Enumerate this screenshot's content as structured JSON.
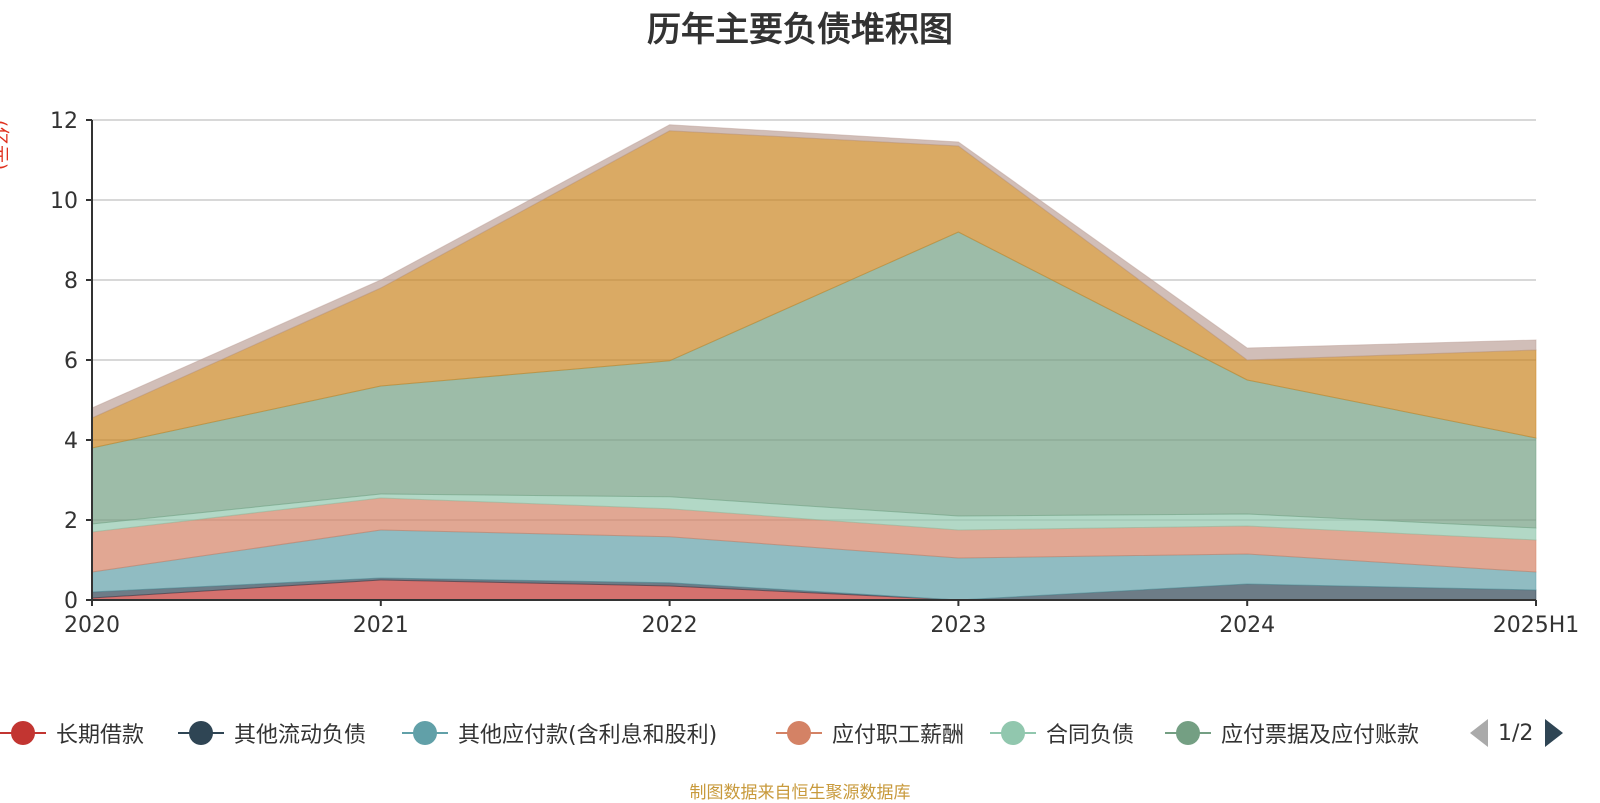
{
  "chart_data": {
    "type": "area",
    "title": "历年主要负债堆积图",
    "unit_label": "(亿元)",
    "categories": [
      "2020",
      "2021",
      "2022",
      "2023",
      "2024",
      "2025H1"
    ],
    "ylim": [
      0,
      12
    ],
    "yticks": [
      0,
      2,
      4,
      6,
      8,
      10,
      12
    ],
    "stacked": true,
    "grid": true,
    "series": [
      {
        "name": "长期借款",
        "color": "#c23531",
        "values": [
          0.05,
          0.5,
          0.35,
          0.0,
          0.0,
          0.0
        ]
      },
      {
        "name": "其他流动负债",
        "color": "#2f4554",
        "values": [
          0.15,
          0.05,
          0.08,
          0.0,
          0.4,
          0.25
        ]
      },
      {
        "name": "其他应付款(含利息和股利)",
        "color": "#61a0a8",
        "values": [
          0.5,
          1.2,
          1.15,
          1.05,
          0.75,
          0.45
        ]
      },
      {
        "name": "应付职工薪酬",
        "color": "#d48265",
        "values": [
          1.0,
          0.8,
          0.7,
          0.7,
          0.7,
          0.8
        ]
      },
      {
        "name": "合同负债",
        "color": "#91c7ae",
        "values": [
          0.2,
          0.1,
          0.3,
          0.35,
          0.3,
          0.3
        ]
      },
      {
        "name": "应付票据及应付账款",
        "color": "#749f83",
        "values": [
          1.9,
          2.7,
          3.4,
          7.1,
          3.35,
          2.25
        ]
      },
      {
        "name": "",
        "color": "#ca8622",
        "values": [
          0.75,
          2.45,
          5.75,
          2.15,
          0.5,
          2.2
        ]
      },
      {
        "name": "",
        "color": "#bda29a",
        "values": [
          0.25,
          0.2,
          0.15,
          0.1,
          0.3,
          0.25
        ]
      }
    ]
  },
  "legend": {
    "items": [
      {
        "label": "长期借款",
        "color": "#c23531"
      },
      {
        "label": "其他流动负债",
        "color": "#2f4554"
      },
      {
        "label": "其他应付款(含利息和股利)",
        "color": "#61a0a8"
      },
      {
        "label": "应付职工薪酬",
        "color": "#d48265"
      },
      {
        "label": "合同负债",
        "color": "#91c7ae"
      },
      {
        "label": "应付票据及应付账款",
        "color": "#749f83"
      },
      {
        "label": "",
        "color": "#ca8622"
      }
    ],
    "page": "1/2"
  },
  "footer": "制图数据来自恒生聚源数据库"
}
